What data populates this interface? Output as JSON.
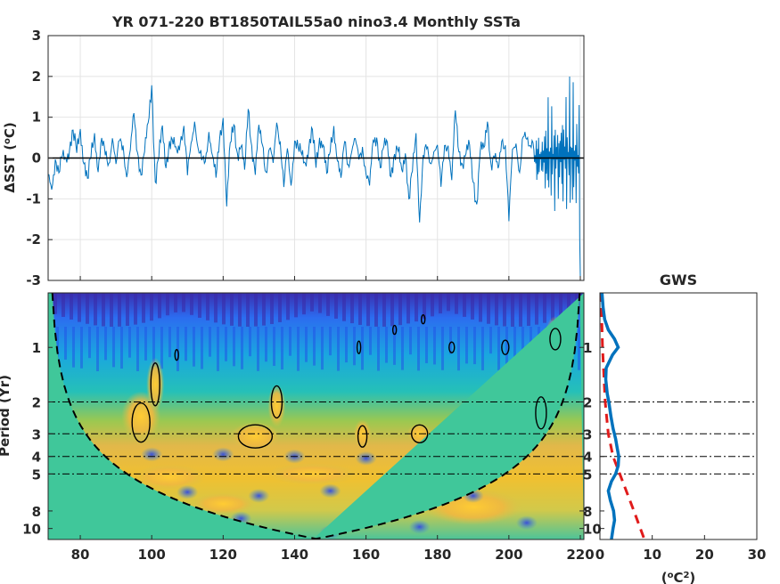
{
  "chart_data": [
    {
      "type": "line",
      "panel": "time-series",
      "title": "YR 071-220 BT1850TAIL55a0 nino3.4 Monthly SSTa",
      "ylabel_prefix": "ΔSST (",
      "ylabel_unit": "o",
      "ylabel_suffix": "C)",
      "xlim": [
        71,
        221
      ],
      "ylim": [
        -3,
        3
      ],
      "yticks": [
        -3,
        -2,
        -1,
        0,
        1,
        2,
        3
      ],
      "xticks": [
        80,
        100,
        120,
        140,
        160,
        180,
        200,
        220
      ],
      "grid": true,
      "series": [
        {
          "x": [
            71,
            72,
            73,
            74,
            75,
            76,
            77,
            78,
            79,
            80,
            81,
            82,
            83,
            84,
            85,
            86,
            87,
            88,
            89,
            90,
            91,
            92,
            93,
            94,
            95,
            96,
            97,
            98,
            99,
            100,
            101,
            102,
            103,
            104,
            105,
            106,
            107,
            108,
            109,
            110,
            111,
            112,
            113,
            114,
            115,
            116,
            117,
            118,
            119,
            120,
            121,
            122,
            123,
            124,
            125,
            126,
            127,
            128,
            129,
            130,
            131,
            132,
            133,
            134,
            135,
            136,
            137,
            138,
            139,
            140,
            141,
            142,
            143,
            144,
            145,
            146,
            147,
            148,
            149,
            150,
            151,
            152,
            153,
            154,
            155,
            156,
            157,
            158,
            159,
            160,
            161,
            162,
            163,
            164,
            165,
            166,
            167,
            168,
            169,
            170,
            171,
            172,
            173,
            174,
            175,
            176,
            177,
            178,
            179,
            180,
            181,
            182,
            183,
            184,
            185,
            186,
            187,
            188,
            189,
            190,
            191,
            192,
            193,
            194,
            195,
            196,
            197,
            198,
            199,
            200,
            201,
            202,
            203,
            204,
            205,
            206,
            207,
            208,
            209,
            210,
            211,
            212,
            213,
            214,
            215,
            216,
            217,
            218,
            219,
            220
          ],
          "values": [
            -0.4,
            -0.9,
            0.0,
            -0.3,
            0.1,
            -0.2,
            0.3,
            0.7,
            0.2,
            0.5,
            0.0,
            -0.5,
            0.1,
            0.4,
            -0.2,
            0.5,
            0.1,
            -0.3,
            0.6,
            -0.1,
            0.4,
            0.2,
            -0.4,
            0.3,
            1.0,
            0.1,
            -0.4,
            0.3,
            0.7,
            1.8,
            -0.6,
            0.2,
            0.6,
            -0.2,
            0.4,
            0.5,
            0.0,
            0.4,
            0.8,
            -0.3,
            0.2,
            0.9,
            0.3,
            0.0,
            -0.2,
            0.6,
            0.2,
            -0.5,
            0.4,
            0.9,
            -1.0,
            0.3,
            0.8,
            0.0,
            0.5,
            -0.4,
            1.2,
            0.2,
            -0.2,
            0.7,
            0.3,
            -0.4,
            0.4,
            -0.2,
            0.8,
            0.4,
            -0.6,
            0.2,
            -0.8,
            0.5,
            0.3,
            0.1,
            -0.3,
            0.4,
            0.7,
            -0.2,
            0.3,
            0.5,
            -0.4,
            0.2,
            0.6,
            0.1,
            -0.5,
            0.4,
            -0.3,
            0.3,
            0.5,
            -0.1,
            0.2,
            -0.3,
            -0.6,
            0.3,
            0.5,
            -0.2,
            0.4,
            0.2,
            -0.4,
            0.1,
            0.3,
            -0.5,
            0.2,
            -1.0,
            -0.2,
            0.4,
            -1.5,
            0.1,
            0.3,
            -0.3,
            0.2,
            0.4,
            -0.7,
            0.2,
            0.3,
            -0.4,
            1.1,
            0.1,
            -0.2,
            0.3,
            0.2,
            -0.6,
            -1.2,
            0.4,
            0.1,
            0.9,
            -0.2,
            0.2,
            -0.4,
            0.4,
            0.3,
            -1.4,
            0.1,
            0.3,
            -0.3,
            0.6,
            0.4,
            0.2,
            0.7,
            -1.0,
            0.3,
            0.6,
            1.5,
            -1.7,
            1.9,
            -1.8,
            2.0,
            -1.9,
            2.0,
            -2.2,
            1.8,
            -2.9
          ]
        }
      ]
    },
    {
      "type": "heatmap",
      "panel": "wavelet-power",
      "ylabel": "Period (Yr)",
      "xlim": [
        71,
        221
      ],
      "ylim": [
        0.5,
        11.5
      ],
      "yscale": "log",
      "xticks": [
        80,
        100,
        120,
        140,
        160,
        180,
        200,
        220
      ],
      "yticks": [
        1,
        2,
        3,
        4,
        5,
        8,
        10
      ],
      "reference_periods": [
        2,
        3,
        4,
        5
      ],
      "colormap": "parula",
      "significance_regions": [
        {
          "x": 97,
          "y": 2.4
        },
        {
          "x": 101,
          "y": 1.6
        },
        {
          "x": 129,
          "y": 3.0
        },
        {
          "x": 135,
          "y": 2.0
        },
        {
          "x": 159,
          "y": 3.0
        },
        {
          "x": 175,
          "y": 3.0
        },
        {
          "x": 209,
          "y": 2.2
        },
        {
          "x": 213,
          "y": 0.9
        }
      ]
    },
    {
      "type": "line",
      "panel": "global-wavelet-spectrum",
      "title": "GWS",
      "xlabel_prefix": "(",
      "xlabel_unit_o": "o",
      "xlabel_unit_C": "C",
      "xlabel_exp": "2",
      "xlabel_suffix": ")",
      "xlim": [
        0,
        30
      ],
      "xticks": [
        0,
        10,
        20,
        30
      ],
      "yticks": [
        1,
        2,
        3,
        4,
        5,
        8,
        10
      ],
      "series": [
        {
          "style": "solid",
          "color": "#0072BD",
          "period": [
            0.5,
            0.6,
            0.7,
            0.8,
            0.9,
            1.0,
            1.1,
            1.3,
            1.5,
            1.8,
            2.0,
            2.4,
            2.8,
            3.2,
            3.6,
            4.0,
            4.5,
            5.0,
            5.5,
            6.2,
            7.0,
            8.0,
            9.0,
            10.0,
            11.5
          ],
          "power": [
            0.4,
            0.6,
            0.9,
            1.6,
            2.8,
            3.5,
            2.4,
            1.2,
            1.1,
            1.4,
            1.7,
            2.1,
            2.5,
            3.0,
            3.3,
            3.6,
            3.5,
            3.0,
            2.2,
            1.6,
            2.0,
            2.6,
            2.8,
            2.5,
            2.2
          ]
        },
        {
          "style": "dashed",
          "color": "#e01b1b",
          "period": [
            0.5,
            1.0,
            2.0,
            3.0,
            4.0,
            5.0,
            8.0,
            11.5
          ],
          "power": [
            0.2,
            0.5,
            1.0,
            1.6,
            2.5,
            3.8,
            6.5,
            8.5
          ]
        }
      ]
    }
  ]
}
